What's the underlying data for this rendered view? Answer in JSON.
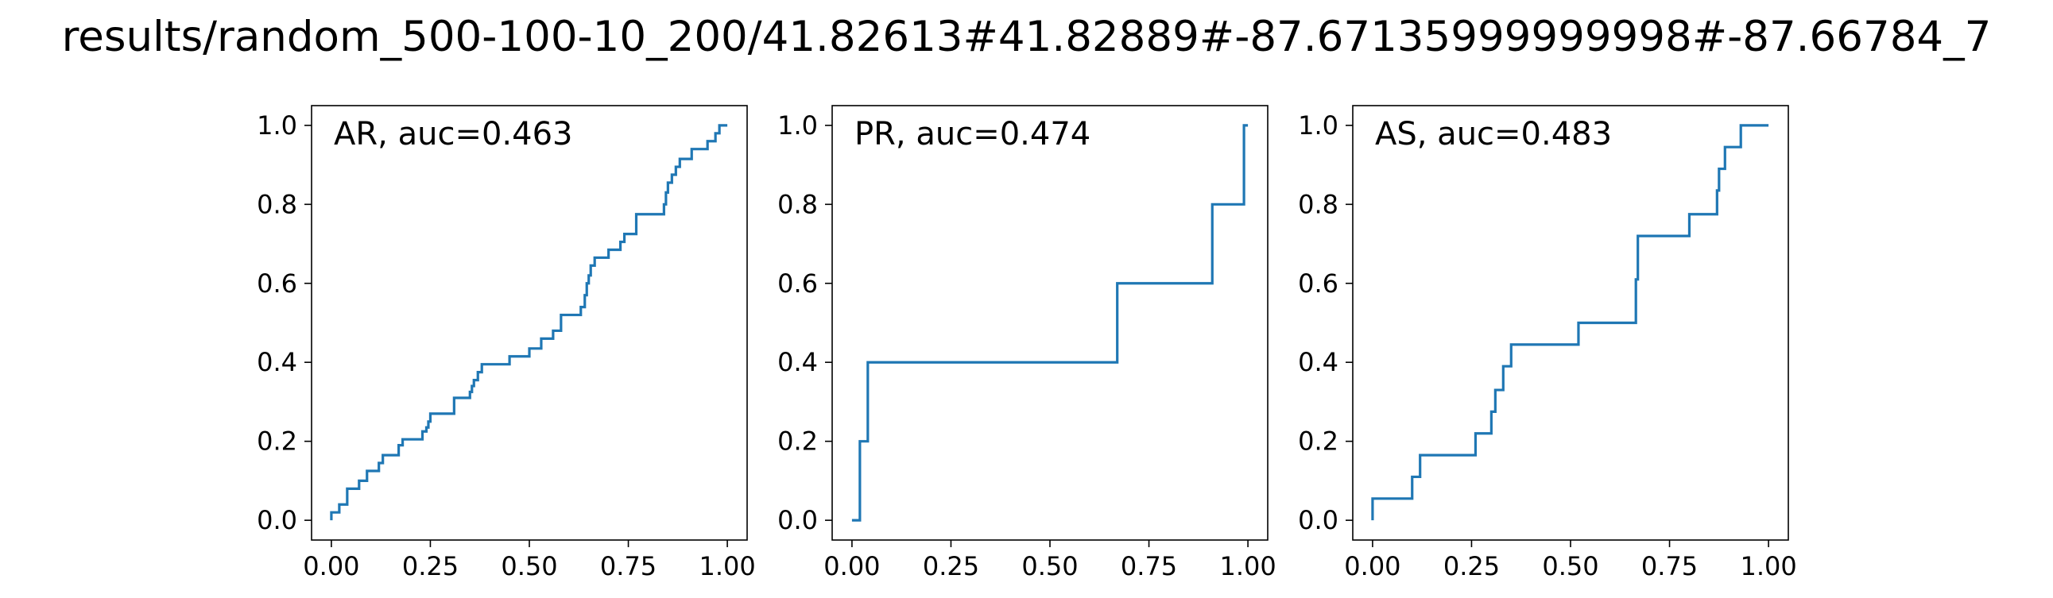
{
  "figure": {
    "title": "results/random_500-100-10_200/41.82613#41.82889#-87.67135999999998#-87.66784_7"
  },
  "line_color": "#1f77b4",
  "chart_data": [
    {
      "type": "line",
      "title": "AR, auc=0.463",
      "xlim": [
        -0.05,
        1.05
      ],
      "ylim": [
        -0.05,
        1.05
      ],
      "xticks": [
        "0.00",
        "0.25",
        "0.50",
        "0.75",
        "1.00"
      ],
      "yticks": [
        "0.0",
        "0.2",
        "0.4",
        "0.6",
        "0.8",
        "1.0"
      ],
      "legend": "none",
      "grid": false,
      "series": [
        {
          "x": [
            0.0,
            0.0,
            0.02,
            0.02,
            0.04,
            0.04,
            0.07,
            0.07,
            0.09,
            0.09,
            0.12,
            0.12,
            0.13,
            0.13,
            0.17,
            0.17,
            0.18,
            0.18,
            0.23,
            0.23,
            0.24,
            0.24,
            0.245,
            0.245,
            0.25,
            0.25,
            0.31,
            0.31,
            0.35,
            0.35,
            0.355,
            0.355,
            0.36,
            0.36,
            0.37,
            0.37,
            0.38,
            0.38,
            0.45,
            0.45,
            0.5,
            0.5,
            0.53,
            0.53,
            0.56,
            0.56,
            0.58,
            0.58,
            0.63,
            0.63,
            0.64,
            0.64,
            0.645,
            0.645,
            0.65,
            0.65,
            0.655,
            0.655,
            0.66,
            0.66,
            0.665,
            0.665,
            0.67,
            0.67,
            0.7,
            0.7,
            0.73,
            0.73,
            0.74,
            0.74,
            0.77,
            0.77,
            0.84,
            0.84,
            0.845,
            0.845,
            0.85,
            0.85,
            0.86,
            0.86,
            0.87,
            0.87,
            0.88,
            0.88,
            0.91,
            0.91,
            0.95,
            0.95,
            0.97,
            0.97,
            0.98,
            0.98,
            1.0
          ],
          "y": [
            0.0,
            0.02,
            0.02,
            0.04,
            0.04,
            0.08,
            0.08,
            0.1,
            0.1,
            0.125,
            0.125,
            0.145,
            0.145,
            0.165,
            0.165,
            0.19,
            0.19,
            0.205,
            0.205,
            0.225,
            0.225,
            0.235,
            0.235,
            0.25,
            0.25,
            0.27,
            0.27,
            0.31,
            0.31,
            0.325,
            0.325,
            0.34,
            0.34,
            0.355,
            0.355,
            0.375,
            0.375,
            0.395,
            0.395,
            0.415,
            0.415,
            0.435,
            0.435,
            0.46,
            0.46,
            0.48,
            0.48,
            0.52,
            0.52,
            0.54,
            0.54,
            0.57,
            0.57,
            0.6,
            0.6,
            0.62,
            0.62,
            0.645,
            0.645,
            0.645,
            0.645,
            0.665,
            0.665,
            0.665,
            0.665,
            0.685,
            0.685,
            0.705,
            0.705,
            0.725,
            0.725,
            0.775,
            0.775,
            0.8,
            0.8,
            0.83,
            0.83,
            0.855,
            0.855,
            0.875,
            0.875,
            0.895,
            0.895,
            0.915,
            0.915,
            0.94,
            0.94,
            0.96,
            0.96,
            0.98,
            0.98,
            1.0,
            1.0
          ]
        }
      ]
    },
    {
      "type": "line",
      "title": "PR, auc=0.474",
      "xlim": [
        -0.05,
        1.05
      ],
      "ylim": [
        -0.05,
        1.05
      ],
      "xticks": [
        "0.00",
        "0.25",
        "0.50",
        "0.75",
        "1.00"
      ],
      "yticks": [
        "0.0",
        "0.2",
        "0.4",
        "0.6",
        "0.8",
        "1.0"
      ],
      "legend": "none",
      "grid": false,
      "series": [
        {
          "x": [
            0.0,
            0.02,
            0.02,
            0.04,
            0.04,
            0.67,
            0.67,
            0.91,
            0.91,
            0.99,
            0.99,
            1.0
          ],
          "y": [
            0.0,
            0.0,
            0.2,
            0.2,
            0.4,
            0.4,
            0.6,
            0.6,
            0.8,
            0.8,
            1.0,
            1.0
          ]
        }
      ]
    },
    {
      "type": "line",
      "title": "AS, auc=0.483",
      "xlim": [
        -0.05,
        1.05
      ],
      "ylim": [
        -0.05,
        1.05
      ],
      "xticks": [
        "0.00",
        "0.25",
        "0.50",
        "0.75",
        "1.00"
      ],
      "yticks": [
        "0.0",
        "0.2",
        "0.4",
        "0.6",
        "0.8",
        "1.0"
      ],
      "legend": "none",
      "grid": false,
      "series": [
        {
          "x": [
            0.0,
            0.0,
            0.1,
            0.1,
            0.12,
            0.12,
            0.26,
            0.26,
            0.3,
            0.3,
            0.31,
            0.31,
            0.33,
            0.33,
            0.35,
            0.35,
            0.52,
            0.52,
            0.665,
            0.665,
            0.67,
            0.67,
            0.8,
            0.8,
            0.87,
            0.87,
            0.875,
            0.875,
            0.89,
            0.89,
            0.93,
            0.93,
            1.0
          ],
          "y": [
            0.0,
            0.055,
            0.055,
            0.11,
            0.11,
            0.165,
            0.165,
            0.22,
            0.22,
            0.275,
            0.275,
            0.33,
            0.33,
            0.39,
            0.39,
            0.445,
            0.445,
            0.5,
            0.5,
            0.61,
            0.61,
            0.72,
            0.72,
            0.775,
            0.775,
            0.835,
            0.835,
            0.89,
            0.89,
            0.945,
            0.945,
            1.0,
            1.0
          ]
        }
      ]
    }
  ]
}
